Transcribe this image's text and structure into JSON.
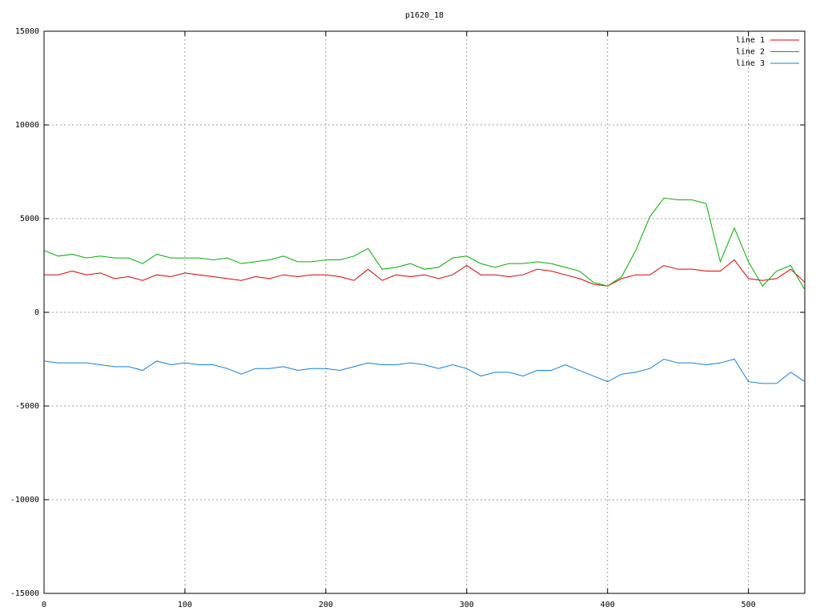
{
  "chart_data": {
    "type": "line",
    "title": "p1620_18",
    "x": [
      0,
      10,
      20,
      30,
      40,
      50,
      60,
      70,
      80,
      90,
      100,
      110,
      120,
      130,
      140,
      150,
      160,
      170,
      180,
      190,
      200,
      210,
      220,
      230,
      240,
      250,
      260,
      270,
      280,
      290,
      300,
      310,
      320,
      330,
      340,
      350,
      360,
      370,
      380,
      390,
      400,
      410,
      420,
      430,
      440,
      450,
      460,
      470,
      480,
      490,
      500,
      510,
      520,
      530,
      540
    ],
    "series": [
      {
        "name": "line 1",
        "color": "#e00000",
        "values": [
          2000,
          2000,
          2200,
          2000,
          2100,
          1800,
          1900,
          1700,
          2000,
          1900,
          2100,
          2000,
          1900,
          1800,
          1700,
          1900,
          1800,
          2000,
          1900,
          2000,
          2000,
          1900,
          1700,
          2300,
          1700,
          2000,
          1900,
          2000,
          1800,
          2000,
          2500,
          2000,
          2000,
          1900,
          2000,
          2300,
          2200,
          2000,
          1800,
          1500,
          1400,
          1800,
          2000,
          2000,
          2500,
          2300,
          2300,
          2200,
          2200,
          2800,
          1800,
          1700,
          1800,
          2300,
          1600
        ]
      },
      {
        "name": "line 2",
        "color": "#00b000",
        "values": [
          3300,
          3000,
          3100,
          2900,
          3000,
          2900,
          2900,
          2600,
          3100,
          2900,
          2900,
          2900,
          2800,
          2900,
          2600,
          2700,
          2800,
          3000,
          2700,
          2700,
          2800,
          2800,
          3000,
          3400,
          2300,
          2400,
          2600,
          2300,
          2400,
          2900,
          3000,
          2600,
          2400,
          2600,
          2600,
          2700,
          2600,
          2400,
          2200,
          1600,
          1400,
          1900,
          3300,
          5100,
          6100,
          6000,
          6000,
          5800,
          2700,
          4500,
          2700,
          1400,
          2200,
          2500,
          1200
        ]
      },
      {
        "name": "line 3",
        "color": "#1080e0",
        "values": [
          -2600,
          -2700,
          -2700,
          -2700,
          -2800,
          -2900,
          -2900,
          -3100,
          -2600,
          -2800,
          -2700,
          -2800,
          -2800,
          -3000,
          -3300,
          -3000,
          -3000,
          -2900,
          -3100,
          -3000,
          -3000,
          -3100,
          -2900,
          -2700,
          -2800,
          -2800,
          -2700,
          -2800,
          -3000,
          -2800,
          -3000,
          -3400,
          -3200,
          -3200,
          -3400,
          -3100,
          -3100,
          -2800,
          -3100,
          -3400,
          -3700,
          -3300,
          -3200,
          -3000,
          -2500,
          -2700,
          -2700,
          -2800,
          -2700,
          -2500,
          -3700,
          -3800,
          -3800,
          -3200,
          -3700
        ]
      }
    ],
    "xlim": [
      0,
      540
    ],
    "xticks": [
      0,
      100,
      200,
      300,
      400,
      500
    ],
    "ylim": [
      -15000,
      15000
    ],
    "yticks": [
      -15000,
      -10000,
      -5000,
      0,
      5000,
      10000,
      15000
    ],
    "grid": true,
    "legend": "top-right"
  }
}
